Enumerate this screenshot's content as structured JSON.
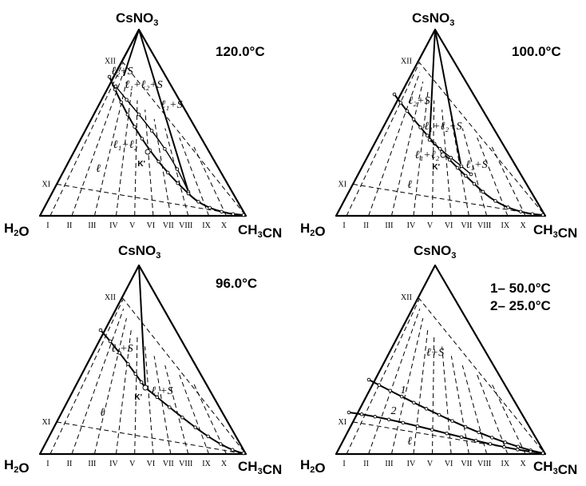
{
  "components": {
    "top": "CsNO3",
    "left": "H2O",
    "right": "CH3CN"
  },
  "sections": [
    "I",
    "II",
    "III",
    "IV",
    "V",
    "VI",
    "VII",
    "VIII",
    "IX",
    "X",
    "XI",
    "XII"
  ],
  "panels": [
    {
      "id": "p120",
      "temperature": "120.0°C",
      "fields": [
        "ℓ₂+S",
        "ℓ₁+ℓ₂+S",
        "ℓ₁+S",
        "ℓ₁+ℓ₂",
        "ℓ"
      ],
      "critical_point": "K'"
    },
    {
      "id": "p100",
      "temperature": "100.0°C",
      "fields": [
        "ℓ₂+S",
        "ℓ₁+ℓ₂+S",
        "ℓ₁+ℓ₂",
        "ℓ₁+S",
        "ℓ"
      ],
      "critical_point": "K'"
    },
    {
      "id": "p96",
      "temperature": "96.0°C",
      "fields": [
        "ℓ₂+S",
        "ℓ₁+S",
        "ℓ"
      ],
      "critical_point": "K'"
    },
    {
      "id": "p50_25",
      "temperature_lines": [
        "1– 50.0°C",
        "2– 25.0°C"
      ],
      "fields": [
        "ℓ+S",
        "ℓ"
      ],
      "curve_labels": [
        "1",
        "2"
      ]
    }
  ]
}
